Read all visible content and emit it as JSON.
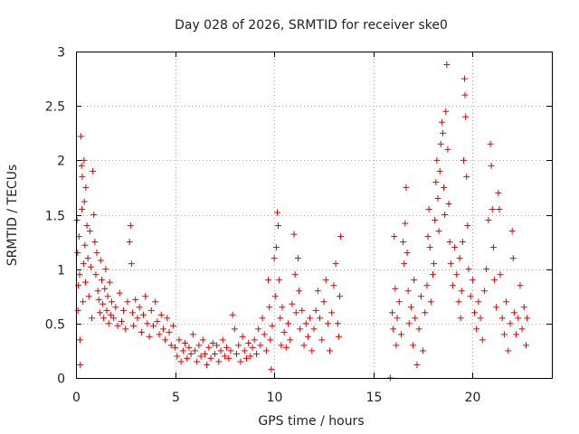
{
  "chart_data": {
    "type": "scatter",
    "title": "Day 028 of 2026, SRMTID for receiver ske0",
    "xlabel": "GPS time / hours",
    "ylabel": "SRMTID / TECUs",
    "xlim": [
      0,
      24
    ],
    "ylim": [
      0,
      3
    ],
    "xticks": [
      0,
      5,
      10,
      15,
      20
    ],
    "xtick_labels": [
      "0",
      "5",
      "10",
      "15",
      "20"
    ],
    "yticks": [
      0,
      0.5,
      1,
      1.5,
      2,
      2.5,
      3
    ],
    "ytick_labels": [
      "0",
      "0.5",
      "1",
      "1.5",
      "2",
      "2.5",
      "3"
    ],
    "grid": true,
    "marker": "+",
    "series_color": "#e00000",
    "series": [
      {
        "name": "SRMTID",
        "points": [
          [
            0.05,
            1.45
          ],
          [
            0.08,
            1.15
          ],
          [
            0.1,
            0.62
          ],
          [
            0.12,
            0.85
          ],
          [
            0.15,
            1.3
          ],
          [
            0.18,
            0.95
          ],
          [
            0.2,
            0.35
          ],
          [
            0.22,
            0.12
          ],
          [
            0.25,
            2.22
          ],
          [
            0.28,
            1.95
          ],
          [
            0.3,
            1.55
          ],
          [
            0.32,
            1.85
          ],
          [
            0.35,
            0.7
          ],
          [
            0.38,
            1.05
          ],
          [
            0.4,
            2.0
          ],
          [
            0.42,
            1.62
          ],
          [
            0.45,
            1.22
          ],
          [
            0.48,
            0.88
          ],
          [
            0.5,
            1.75
          ],
          [
            0.55,
            1.4
          ],
          [
            0.6,
            1.1
          ],
          [
            0.65,
            0.75
          ],
          [
            0.7,
            1.35
          ],
          [
            0.75,
            1.02
          ],
          [
            0.8,
            0.55
          ],
          [
            0.85,
            1.9
          ],
          [
            0.9,
            1.5
          ],
          [
            0.95,
            1.25
          ],
          [
            1.0,
            0.95
          ],
          [
            1.05,
            1.15
          ],
          [
            1.1,
            0.8
          ],
          [
            1.15,
            0.72
          ],
          [
            1.2,
            0.6
          ],
          [
            1.25,
            1.08
          ],
          [
            1.3,
            0.9
          ],
          [
            1.35,
            0.68
          ],
          [
            1.4,
            0.55
          ],
          [
            1.45,
            0.82
          ],
          [
            1.5,
            1.0
          ],
          [
            1.55,
            0.62
          ],
          [
            1.6,
            0.75
          ],
          [
            1.65,
            0.5
          ],
          [
            1.7,
            0.88
          ],
          [
            1.75,
            0.58
          ],
          [
            1.8,
            0.7
          ],
          [
            1.9,
            0.55
          ],
          [
            2.0,
            0.65
          ],
          [
            2.1,
            0.48
          ],
          [
            2.2,
            0.78
          ],
          [
            2.3,
            0.52
          ],
          [
            2.4,
            0.62
          ],
          [
            2.5,
            0.45
          ],
          [
            2.6,
            0.7
          ],
          [
            2.7,
            1.25
          ],
          [
            2.75,
            1.4
          ],
          [
            2.8,
            1.05
          ],
          [
            2.85,
            0.6
          ],
          [
            2.9,
            0.48
          ],
          [
            3.0,
            0.72
          ],
          [
            3.1,
            0.55
          ],
          [
            3.2,
            0.65
          ],
          [
            3.3,
            0.42
          ],
          [
            3.4,
            0.58
          ],
          [
            3.5,
            0.75
          ],
          [
            3.6,
            0.5
          ],
          [
            3.7,
            0.38
          ],
          [
            3.8,
            0.62
          ],
          [
            3.9,
            0.48
          ],
          [
            4.0,
            0.7
          ],
          [
            4.1,
            0.52
          ],
          [
            4.2,
            0.4
          ],
          [
            4.3,
            0.58
          ],
          [
            4.4,
            0.45
          ],
          [
            4.5,
            0.35
          ],
          [
            4.6,
            0.55
          ],
          [
            4.7,
            0.42
          ],
          [
            4.8,
            0.3
          ],
          [
            4.9,
            0.48
          ],
          [
            5.0,
            0.28
          ],
          [
            5.1,
            0.2
          ],
          [
            5.2,
            0.35
          ],
          [
            5.3,
            0.15
          ],
          [
            5.4,
            0.25
          ],
          [
            5.5,
            0.32
          ],
          [
            5.6,
            0.18
          ],
          [
            5.7,
            0.28
          ],
          [
            5.8,
            0.22
          ],
          [
            5.9,
            0.4
          ],
          [
            6.0,
            0.25
          ],
          [
            6.1,
            0.15
          ],
          [
            6.2,
            0.3
          ],
          [
            6.3,
            0.2
          ],
          [
            6.4,
            0.35
          ],
          [
            6.5,
            0.22
          ],
          [
            6.6,
            0.12
          ],
          [
            6.7,
            0.28
          ],
          [
            6.8,
            0.18
          ],
          [
            6.9,
            0.32
          ],
          [
            7.0,
            0.22
          ],
          [
            7.1,
            0.3
          ],
          [
            7.2,
            0.15
          ],
          [
            7.3,
            0.25
          ],
          [
            7.4,
            0.35
          ],
          [
            7.5,
            0.2
          ],
          [
            7.6,
            0.28
          ],
          [
            7.7,
            0.18
          ],
          [
            7.8,
            0.25
          ],
          [
            7.9,
            0.58
          ],
          [
            8.0,
            0.45
          ],
          [
            8.1,
            0.22
          ],
          [
            8.2,
            0.3
          ],
          [
            8.3,
            0.15
          ],
          [
            8.4,
            0.38
          ],
          [
            8.5,
            0.25
          ],
          [
            8.6,
            0.18
          ],
          [
            8.7,
            0.32
          ],
          [
            8.8,
            0.2
          ],
          [
            8.9,
            0.28
          ],
          [
            9.0,
            0.35
          ],
          [
            9.1,
            0.22
          ],
          [
            9.2,
            0.45
          ],
          [
            9.3,
            0.3
          ],
          [
            9.4,
            0.55
          ],
          [
            9.5,
            0.4
          ],
          [
            9.6,
            0.25
          ],
          [
            9.7,
            0.9
          ],
          [
            9.75,
            0.65
          ],
          [
            9.8,
            0.35
          ],
          [
            9.85,
            0.08
          ],
          [
            9.9,
            0.48
          ],
          [
            10.0,
            1.1
          ],
          [
            10.05,
            0.75
          ],
          [
            10.1,
            1.2
          ],
          [
            10.15,
            1.52
          ],
          [
            10.2,
            1.4
          ],
          [
            10.25,
            0.9
          ],
          [
            10.3,
            0.55
          ],
          [
            10.35,
            0.3
          ],
          [
            10.4,
            0.65
          ],
          [
            10.5,
            0.42
          ],
          [
            10.6,
            0.28
          ],
          [
            10.7,
            0.5
          ],
          [
            10.8,
            0.35
          ],
          [
            10.9,
            0.68
          ],
          [
            11.0,
            1.32
          ],
          [
            11.05,
            0.95
          ],
          [
            11.1,
            0.6
          ],
          [
            11.2,
            1.1
          ],
          [
            11.25,
            0.8
          ],
          [
            11.3,
            0.45
          ],
          [
            11.4,
            0.62
          ],
          [
            11.5,
            0.3
          ],
          [
            11.6,
            0.5
          ],
          [
            11.7,
            0.38
          ],
          [
            11.8,
            0.55
          ],
          [
            11.9,
            0.25
          ],
          [
            12.0,
            0.45
          ],
          [
            12.1,
            0.62
          ],
          [
            12.2,
            0.8
          ],
          [
            12.3,
            0.55
          ],
          [
            12.4,
            0.35
          ],
          [
            12.5,
            0.7
          ],
          [
            12.6,
            0.9
          ],
          [
            12.7,
            0.5
          ],
          [
            12.8,
            0.25
          ],
          [
            12.9,
            0.6
          ],
          [
            13.0,
            0.85
          ],
          [
            13.1,
            1.05
          ],
          [
            13.2,
            0.5
          ],
          [
            13.25,
            0.38
          ],
          [
            13.3,
            0.75
          ],
          [
            13.35,
            1.3
          ],
          [
            15.85,
            0.0
          ],
          [
            15.95,
            0.6
          ],
          [
            16.0,
            0.45
          ],
          [
            16.05,
            1.3
          ],
          [
            16.1,
            0.82
          ],
          [
            16.15,
            0.3
          ],
          [
            16.2,
            0.55
          ],
          [
            16.3,
            0.7
          ],
          [
            16.4,
            0.4
          ],
          [
            16.5,
            1.25
          ],
          [
            16.55,
            1.05
          ],
          [
            16.6,
            1.42
          ],
          [
            16.65,
            1.75
          ],
          [
            16.7,
            1.15
          ],
          [
            16.75,
            0.8
          ],
          [
            16.8,
            0.5
          ],
          [
            16.9,
            0.65
          ],
          [
            17.0,
            0.3
          ],
          [
            17.05,
            0.9
          ],
          [
            17.1,
            0.55
          ],
          [
            17.2,
            0.12
          ],
          [
            17.3,
            0.45
          ],
          [
            17.4,
            0.75
          ],
          [
            17.5,
            0.25
          ],
          [
            17.6,
            0.6
          ],
          [
            17.7,
            0.85
          ],
          [
            17.75,
            1.3
          ],
          [
            17.8,
            1.55
          ],
          [
            17.85,
            1.2
          ],
          [
            17.9,
            0.7
          ],
          [
            18.0,
            0.95
          ],
          [
            18.05,
            1.05
          ],
          [
            18.1,
            1.45
          ],
          [
            18.15,
            1.8
          ],
          [
            18.2,
            2.0
          ],
          [
            18.25,
            1.65
          ],
          [
            18.3,
            1.35
          ],
          [
            18.35,
            1.9
          ],
          [
            18.4,
            2.15
          ],
          [
            18.45,
            2.35
          ],
          [
            18.5,
            2.25
          ],
          [
            18.55,
            1.75
          ],
          [
            18.6,
            1.5
          ],
          [
            18.65,
            2.45
          ],
          [
            18.7,
            2.88
          ],
          [
            18.75,
            2.1
          ],
          [
            18.8,
            1.6
          ],
          [
            18.85,
            1.25
          ],
          [
            18.9,
            1.05
          ],
          [
            19.0,
            0.85
          ],
          [
            19.1,
            1.2
          ],
          [
            19.2,
            0.95
          ],
          [
            19.3,
            0.7
          ],
          [
            19.35,
            1.1
          ],
          [
            19.4,
            0.55
          ],
          [
            19.45,
            0.8
          ],
          [
            19.5,
            1.25
          ],
          [
            19.55,
            2.0
          ],
          [
            19.6,
            2.75
          ],
          [
            19.62,
            2.6
          ],
          [
            19.65,
            2.4
          ],
          [
            19.7,
            1.85
          ],
          [
            19.75,
            1.4
          ],
          [
            19.8,
            1.0
          ],
          [
            19.9,
            0.75
          ],
          [
            20.0,
            0.9
          ],
          [
            20.1,
            0.6
          ],
          [
            20.2,
            0.45
          ],
          [
            20.3,
            0.7
          ],
          [
            20.4,
            0.55
          ],
          [
            20.5,
            0.35
          ],
          [
            20.6,
            0.8
          ],
          [
            20.7,
            1.0
          ],
          [
            20.8,
            1.45
          ],
          [
            20.9,
            2.15
          ],
          [
            20.95,
            1.95
          ],
          [
            21.0,
            1.55
          ],
          [
            21.05,
            1.2
          ],
          [
            21.1,
            0.9
          ],
          [
            21.2,
            0.65
          ],
          [
            21.3,
            1.7
          ],
          [
            21.35,
            1.55
          ],
          [
            21.4,
            0.95
          ],
          [
            21.5,
            0.55
          ],
          [
            21.6,
            0.4
          ],
          [
            21.7,
            0.7
          ],
          [
            21.8,
            0.25
          ],
          [
            21.9,
            0.5
          ],
          [
            22.0,
            1.35
          ],
          [
            22.05,
            1.1
          ],
          [
            22.1,
            0.6
          ],
          [
            22.2,
            0.4
          ],
          [
            22.3,
            0.55
          ],
          [
            22.4,
            0.85
          ],
          [
            22.5,
            0.45
          ],
          [
            22.6,
            0.65
          ],
          [
            22.7,
            0.3
          ],
          [
            22.75,
            0.55
          ]
        ]
      }
    ]
  }
}
